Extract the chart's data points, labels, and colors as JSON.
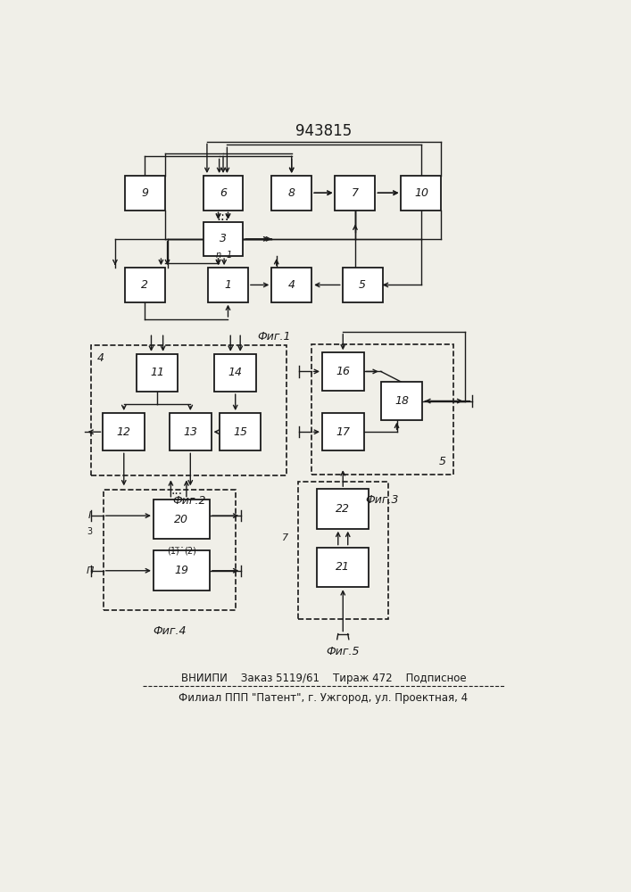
{
  "title": "943815",
  "footer_line1": "ВНИИПИ    Заказ 5119/61    Тираж 472    Подписное",
  "footer_line2": "Филиал ППП \"Патент\", г. Ужгород, ул. Проектная, 4",
  "bg_color": "#f0efe8",
  "box_color": "#ffffff",
  "line_color": "#1a1a1a",
  "fig1_caption": "Фиг.1",
  "fig2_caption": "Фиг.2",
  "fig3_caption": "Фиг.3",
  "fig4_caption": "Фиг.4",
  "fig5_caption": "Фиг.5"
}
